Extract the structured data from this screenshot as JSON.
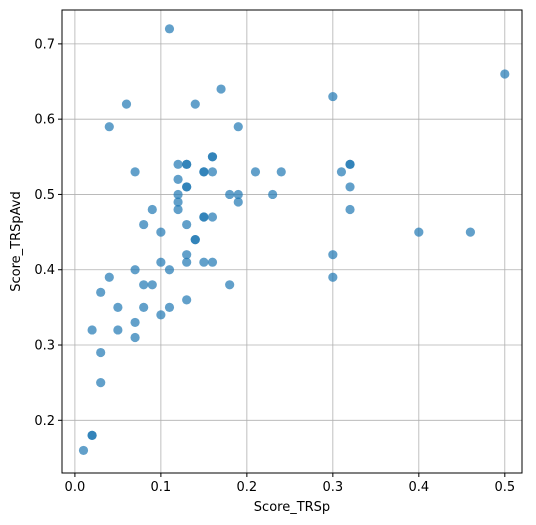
{
  "chart_data": {
    "type": "scatter",
    "xlabel": "Score_TRSp",
    "ylabel": "Score_TRSpAvd",
    "xlim": [
      -0.015,
      0.52
    ],
    "ylim": [
      0.13,
      0.745
    ],
    "xticks": [
      0.0,
      0.1,
      0.2,
      0.3,
      0.4,
      0.5
    ],
    "xtick_labels": [
      "0.0",
      "0.1",
      "0.2",
      "0.3",
      "0.4",
      "0.5"
    ],
    "yticks": [
      0.2,
      0.3,
      0.4,
      0.5,
      0.6,
      0.7
    ],
    "ytick_labels": [
      "0.2",
      "0.3",
      "0.4",
      "0.5",
      "0.6",
      "0.7"
    ],
    "grid": true,
    "marker_color": "#1f77b4",
    "marker_alpha": 0.7,
    "points": [
      [
        0.01,
        0.16
      ],
      [
        0.02,
        0.18
      ],
      [
        0.02,
        0.18
      ],
      [
        0.02,
        0.32
      ],
      [
        0.03,
        0.25
      ],
      [
        0.03,
        0.29
      ],
      [
        0.03,
        0.37
      ],
      [
        0.04,
        0.39
      ],
      [
        0.04,
        0.59
      ],
      [
        0.05,
        0.32
      ],
      [
        0.05,
        0.35
      ],
      [
        0.06,
        0.62
      ],
      [
        0.07,
        0.31
      ],
      [
        0.07,
        0.33
      ],
      [
        0.07,
        0.4
      ],
      [
        0.07,
        0.53
      ],
      [
        0.08,
        0.35
      ],
      [
        0.08,
        0.38
      ],
      [
        0.08,
        0.46
      ],
      [
        0.09,
        0.38
      ],
      [
        0.09,
        0.48
      ],
      [
        0.1,
        0.34
      ],
      [
        0.1,
        0.41
      ],
      [
        0.1,
        0.45
      ],
      [
        0.11,
        0.35
      ],
      [
        0.11,
        0.4
      ],
      [
        0.11,
        0.72
      ],
      [
        0.12,
        0.48
      ],
      [
        0.12,
        0.49
      ],
      [
        0.12,
        0.5
      ],
      [
        0.12,
        0.52
      ],
      [
        0.12,
        0.54
      ],
      [
        0.13,
        0.36
      ],
      [
        0.13,
        0.41
      ],
      [
        0.13,
        0.42
      ],
      [
        0.13,
        0.46
      ],
      [
        0.13,
        0.51
      ],
      [
        0.13,
        0.51
      ],
      [
        0.13,
        0.54
      ],
      [
        0.13,
        0.54
      ],
      [
        0.14,
        0.44
      ],
      [
        0.14,
        0.44
      ],
      [
        0.14,
        0.62
      ],
      [
        0.15,
        0.41
      ],
      [
        0.15,
        0.47
      ],
      [
        0.15,
        0.47
      ],
      [
        0.15,
        0.53
      ],
      [
        0.15,
        0.53
      ],
      [
        0.16,
        0.41
      ],
      [
        0.16,
        0.47
      ],
      [
        0.16,
        0.53
      ],
      [
        0.16,
        0.55
      ],
      [
        0.16,
        0.55
      ],
      [
        0.17,
        0.64
      ],
      [
        0.18,
        0.38
      ],
      [
        0.18,
        0.5
      ],
      [
        0.19,
        0.49
      ],
      [
        0.19,
        0.5
      ],
      [
        0.19,
        0.59
      ],
      [
        0.21,
        0.53
      ],
      [
        0.23,
        0.5
      ],
      [
        0.24,
        0.53
      ],
      [
        0.3,
        0.39
      ],
      [
        0.3,
        0.42
      ],
      [
        0.3,
        0.63
      ],
      [
        0.31,
        0.53
      ],
      [
        0.32,
        0.48
      ],
      [
        0.32,
        0.51
      ],
      [
        0.32,
        0.54
      ],
      [
        0.32,
        0.54
      ],
      [
        0.4,
        0.45
      ],
      [
        0.46,
        0.45
      ],
      [
        0.5,
        0.66
      ]
    ]
  }
}
